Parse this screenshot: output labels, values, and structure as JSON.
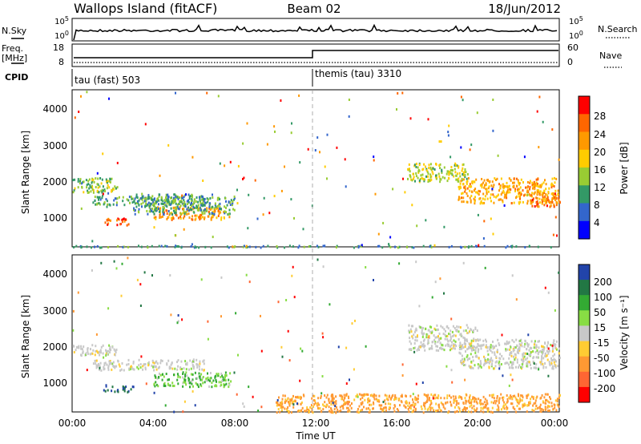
{
  "header": {
    "site": "Wallops Island (fitACF)",
    "beam": "Beam 02",
    "date": "18/Jun/2012"
  },
  "top_panels": {
    "nsky_label": "N.Sky",
    "nsky_ticks": [
      "10^5",
      "10^0"
    ],
    "nsearch_label": "N.Search",
    "nsearch_ticks": [
      "10^5",
      "10^0"
    ],
    "freq_label_1": "Freq.",
    "freq_label_2": "[MHz]",
    "freq_ticks": [
      "18",
      "8"
    ],
    "nave_label": "Nave",
    "nave_ticks": [
      "60",
      "0"
    ],
    "cpid_label": "CPID",
    "cpid_1": "tau (fast) 503",
    "cpid_2": "themis (tau) 3310"
  },
  "chart_data": [
    {
      "type": "heatmap",
      "name": "power",
      "ylabel": "Slant Range [km]",
      "y_ticks": [
        "4000",
        "3000",
        "2000",
        "1000"
      ],
      "colorbar_label": "Power [dB]",
      "colorbar_ticks": [
        "28",
        "24",
        "20",
        "16",
        "12",
        "8",
        "4"
      ],
      "colorbar_colors": [
        "#ff0000",
        "#ff6600",
        "#ff9900",
        "#ffcc00",
        "#99cc33",
        "#339966",
        "#3366cc",
        "#0000ff"
      ],
      "x_range_hours": [
        0,
        24
      ],
      "y_range_km": [
        180,
        4500
      ],
      "regions": [
        {
          "t0": 0.0,
          "t1": 2.2,
          "r0": 1700,
          "r1": 2100,
          "level": 12
        },
        {
          "t0": 1.0,
          "t1": 6.5,
          "r0": 1350,
          "r1": 1650,
          "level": 10
        },
        {
          "t0": 1.5,
          "t1": 2.8,
          "r0": 800,
          "r1": 1000,
          "level": 26
        },
        {
          "t0": 4.0,
          "t1": 7.5,
          "r0": 950,
          "r1": 1300,
          "level": 22
        },
        {
          "t0": 3.0,
          "t1": 8.0,
          "r0": 1100,
          "r1": 1600,
          "level": 9
        },
        {
          "t0": 16.5,
          "t1": 19.5,
          "r0": 2000,
          "r1": 2500,
          "level": 14
        },
        {
          "t0": 19.0,
          "t1": 24.0,
          "r0": 1400,
          "r1": 2100,
          "level": 20
        },
        {
          "t0": 22.5,
          "t1": 24.0,
          "r0": 1300,
          "r1": 1700,
          "level": 24
        },
        {
          "t0": 0.0,
          "t1": 24.0,
          "r0": 190,
          "r1": 240,
          "level": 8
        }
      ]
    },
    {
      "type": "heatmap",
      "name": "velocity",
      "ylabel": "Slant Range [km]",
      "y_ticks": [
        "4000",
        "3000",
        "2000",
        "1000"
      ],
      "colorbar_label": "Velocity [m s⁻¹]",
      "colorbar_ticks": [
        "200",
        "100",
        "50",
        "15",
        "-15",
        "-50",
        "-100",
        "-200"
      ],
      "colorbar_colors": [
        "#2244aa",
        "#227744",
        "#33aa33",
        "#88dd44",
        "#c8c8c8",
        "#ffcc33",
        "#ff9933",
        "#ff6633",
        "#ff0000"
      ],
      "x_range_hours": [
        0,
        24
      ],
      "y_range_km": [
        180,
        4500
      ],
      "x_ticks": [
        "00:00",
        "04:00",
        "08:00",
        "12:00",
        "16:00",
        "20:00",
        "00:00"
      ],
      "xlabel": "Time UT",
      "regions": [
        {
          "t0": 0.0,
          "t1": 2.2,
          "r0": 1750,
          "r1": 2050,
          "level": 0
        },
        {
          "t0": 1.0,
          "t1": 6.5,
          "r0": 1350,
          "r1": 1650,
          "level": 0
        },
        {
          "t0": 1.5,
          "t1": 3.0,
          "r0": 750,
          "r1": 950,
          "level": 150
        },
        {
          "t0": 4.0,
          "t1": 7.8,
          "r0": 900,
          "r1": 1300,
          "level": 30
        },
        {
          "t0": 16.5,
          "t1": 20.0,
          "r0": 1900,
          "r1": 2600,
          "level": 0
        },
        {
          "t0": 19.0,
          "t1": 24.0,
          "r0": 1400,
          "r1": 2200,
          "level": 0
        },
        {
          "t0": 10.0,
          "t1": 24.0,
          "r0": 190,
          "r1": 700,
          "level": -60
        }
      ]
    }
  ]
}
